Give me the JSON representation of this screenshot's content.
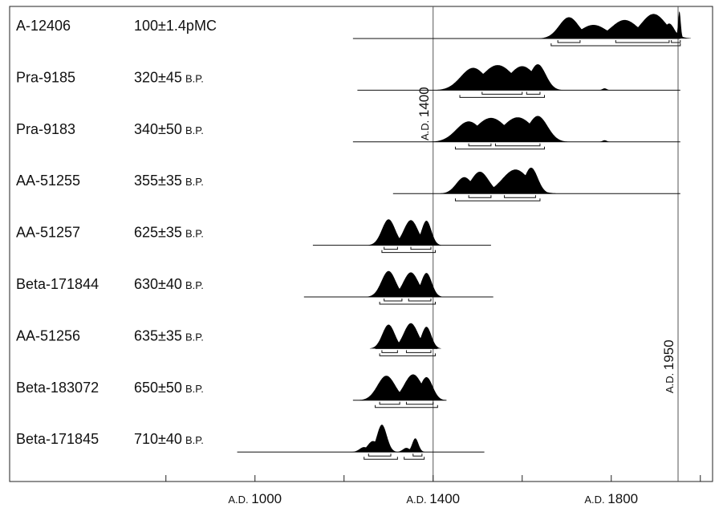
{
  "chart_data": {
    "type": "area",
    "title": "",
    "xlabel": "",
    "ylabel": "",
    "x_unit": "A.D.",
    "xlim": [
      700,
      2100
    ],
    "x_ticks": [
      800,
      1000,
      1200,
      1400,
      1600,
      1800,
      2000
    ],
    "x_tick_labels": [
      {
        "prefix": "A.D.",
        "year": "1000",
        "value": 1000
      },
      {
        "prefix": "A.D.",
        "year": "1400",
        "value": 1400
      },
      {
        "prefix": "A.D.",
        "year": "1800",
        "value": 1800
      }
    ],
    "reference_lines": [
      {
        "value": 1400,
        "prefix": "A.D.",
        "year": "1400"
      },
      {
        "value": 1950,
        "prefix": "A.D.",
        "year": "1950"
      }
    ],
    "series": [
      {
        "lab_code": "A-12406",
        "age_value": "100±1.4pMC",
        "age_unit": "",
        "line_range": [
          1220,
          1955
        ],
        "peaks": [
          {
            "center": 1705,
            "width": 22,
            "height": 0.78
          },
          {
            "center": 1760,
            "width": 30,
            "height": 0.5
          },
          {
            "center": 1830,
            "width": 30,
            "height": 0.68
          },
          {
            "center": 1895,
            "width": 28,
            "height": 0.9
          },
          {
            "center": 1930,
            "width": 12,
            "height": 0.55
          },
          {
            "center": 1953,
            "width": 3,
            "height": 1.0
          }
        ],
        "ranges": [
          [
            1680,
            1730
          ],
          [
            1810,
            1930
          ],
          [
            1935,
            1955
          ]
        ],
        "ranges_95": [
          [
            1665,
            1955
          ]
        ]
      },
      {
        "lab_code": "Pra-9185",
        "age_value": "320±45",
        "age_unit": "B.P.",
        "line_range": [
          1230,
          1955
        ],
        "peaks": [
          {
            "center": 1490,
            "width": 28,
            "height": 0.82
          },
          {
            "center": 1545,
            "width": 35,
            "height": 0.92
          },
          {
            "center": 1600,
            "width": 30,
            "height": 0.88
          },
          {
            "center": 1635,
            "width": 18,
            "height": 0.95
          },
          {
            "center": 1785,
            "width": 5,
            "height": 0.07
          }
        ],
        "ranges": [
          [
            1510,
            1600
          ],
          [
            1610,
            1640
          ]
        ],
        "ranges_95": [
          [
            1460,
            1650
          ]
        ]
      },
      {
        "lab_code": "Pra-9183",
        "age_value": "340±50",
        "age_unit": "B.P.",
        "line_range": [
          1220,
          1955
        ],
        "peaks": [
          {
            "center": 1480,
            "width": 28,
            "height": 0.75
          },
          {
            "center": 1530,
            "width": 35,
            "height": 0.88
          },
          {
            "center": 1590,
            "width": 35,
            "height": 0.9
          },
          {
            "center": 1635,
            "width": 22,
            "height": 0.95
          },
          {
            "center": 1785,
            "width": 5,
            "height": 0.06
          }
        ],
        "ranges": [
          [
            1480,
            1530
          ],
          [
            1540,
            1640
          ]
        ],
        "ranges_95": [
          [
            1450,
            1650
          ]
        ]
      },
      {
        "lab_code": "AA-51255",
        "age_value": "355±35",
        "age_unit": "B.P.",
        "line_range": [
          1310,
          1955
        ],
        "peaks": [
          {
            "center": 1470,
            "width": 18,
            "height": 0.6
          },
          {
            "center": 1505,
            "width": 20,
            "height": 0.8
          },
          {
            "center": 1585,
            "width": 30,
            "height": 0.88
          },
          {
            "center": 1620,
            "width": 15,
            "height": 0.95
          }
        ],
        "ranges": [
          [
            1480,
            1530
          ],
          [
            1560,
            1630
          ]
        ],
        "ranges_95": [
          [
            1450,
            1640
          ]
        ]
      },
      {
        "lab_code": "AA-51257",
        "age_value": "625±35",
        "age_unit": "B.P.",
        "line_range": [
          1130,
          1530
        ],
        "peaks": [
          {
            "center": 1300,
            "width": 15,
            "height": 0.95
          },
          {
            "center": 1350,
            "width": 16,
            "height": 0.92
          },
          {
            "center": 1385,
            "width": 11,
            "height": 0.9
          }
        ],
        "ranges": [
          [
            1290,
            1320
          ],
          [
            1350,
            1395
          ]
        ],
        "ranges_95": [
          [
            1285,
            1405
          ]
        ]
      },
      {
        "lab_code": "Beta-171844",
        "age_value": "630±40",
        "age_unit": "B.P.",
        "line_range": [
          1110,
          1535
        ],
        "peaks": [
          {
            "center": 1300,
            "width": 16,
            "height": 0.95
          },
          {
            "center": 1350,
            "width": 17,
            "height": 0.9
          },
          {
            "center": 1385,
            "width": 12,
            "height": 0.88
          }
        ],
        "ranges": [
          [
            1290,
            1330
          ],
          [
            1345,
            1395
          ]
        ],
        "ranges_95": [
          [
            1280,
            1405
          ]
        ]
      },
      {
        "lab_code": "AA-51256",
        "age_value": "635±35",
        "age_unit": "B.P.",
        "line_range": [
          1270,
          1410
        ],
        "peaks": [
          {
            "center": 1300,
            "width": 14,
            "height": 0.88
          },
          {
            "center": 1350,
            "width": 16,
            "height": 0.93
          },
          {
            "center": 1385,
            "width": 11,
            "height": 0.8
          }
        ],
        "ranges": [
          [
            1285,
            1320
          ],
          [
            1340,
            1395
          ]
        ],
        "ranges_95": [
          [
            1280,
            1405
          ]
        ]
      },
      {
        "lab_code": "Beta-183072",
        "age_value": "650±50",
        "age_unit": "B.P.",
        "line_range": [
          1220,
          1430
        ],
        "peaks": [
          {
            "center": 1295,
            "width": 20,
            "height": 0.9
          },
          {
            "center": 1355,
            "width": 20,
            "height": 0.95
          },
          {
            "center": 1385,
            "width": 14,
            "height": 0.85
          }
        ],
        "ranges": [
          [
            1280,
            1325
          ],
          [
            1340,
            1400
          ]
        ],
        "ranges_95": [
          [
            1270,
            1410
          ]
        ]
      },
      {
        "lab_code": "Beta-171845",
        "age_value": "710±40",
        "age_unit": "B.P.",
        "line_range": [
          960,
          1515
        ],
        "peaks": [
          {
            "center": 1245,
            "width": 10,
            "height": 0.18
          },
          {
            "center": 1285,
            "width": 11,
            "height": 1.0
          },
          {
            "center": 1265,
            "width": 12,
            "height": 0.4
          },
          {
            "center": 1360,
            "width": 7,
            "height": 0.5
          },
          {
            "center": 1340,
            "width": 8,
            "height": 0.15
          }
        ],
        "ranges": [
          [
            1255,
            1305
          ],
          [
            1355,
            1375
          ]
        ],
        "ranges_95": [
          [
            1245,
            1320
          ],
          [
            1335,
            1380
          ]
        ]
      }
    ],
    "grid": false,
    "legend": "none"
  }
}
